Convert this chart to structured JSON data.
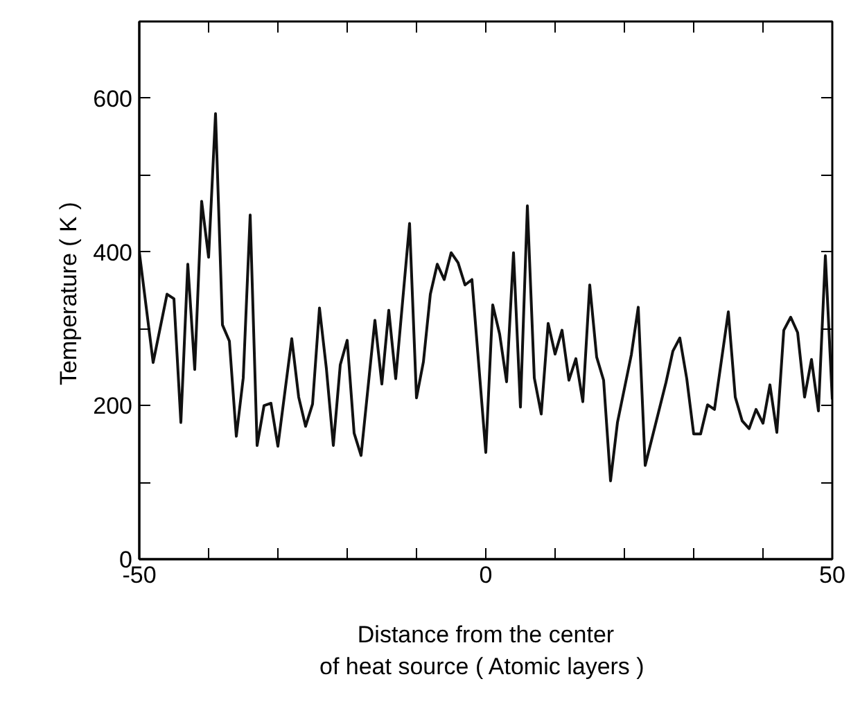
{
  "chart_data": {
    "type": "line",
    "xlabel": "Distance from the center\nof heat source  ( Atomic layers )",
    "ylabel": "Temperature  ( K )",
    "x": [
      -50,
      -48,
      -46,
      -45,
      -44,
      -43,
      -42,
      -41,
      -40,
      -39,
      -38,
      -37,
      -36,
      -35,
      -34,
      -33,
      -32,
      -31,
      -30,
      -28,
      -27,
      -26,
      -25,
      -24,
      -23,
      -22,
      -21,
      -20,
      -19,
      -18,
      -16,
      -15,
      -14,
      -13,
      -11,
      -10,
      -9,
      -8,
      -7,
      -6,
      -5,
      -4,
      -3,
      -2,
      0,
      1,
      2,
      3,
      4,
      5,
      6,
      7,
      8,
      9,
      10,
      11,
      12,
      13,
      14,
      15,
      16,
      17,
      18,
      19,
      21,
      22,
      23,
      26,
      27,
      28,
      29,
      30,
      31,
      32,
      33,
      35,
      36,
      37,
      38,
      39,
      40,
      41,
      42,
      43,
      44,
      45,
      46,
      47,
      48,
      49,
      50
    ],
    "series": [
      {
        "color": "#111111",
        "values": [
          400,
          256,
          345,
          339,
          178,
          384,
          247,
          466,
          393,
          580,
          305,
          284,
          160,
          236,
          448,
          148,
          200,
          203,
          147,
          287,
          211,
          173,
          202,
          327,
          248,
          148,
          253,
          285,
          164,
          135,
          311,
          228,
          324,
          235,
          437,
          210,
          257,
          345,
          384,
          364,
          399,
          386,
          357,
          364,
          139,
          331,
          293,
          231,
          399,
          198,
          460,
          236,
          189,
          307,
          267,
          298,
          233,
          261,
          205,
          357,
          263,
          233,
          102,
          178,
          266,
          328,
          122,
          230,
          271,
          288,
          235,
          163,
          163,
          201,
          195,
          322,
          211,
          180,
          170,
          195,
          177,
          227,
          165,
          298,
          315,
          295,
          211,
          260,
          193,
          395,
          208
        ]
      }
    ],
    "xlim": [
      -50,
      50
    ],
    "ylim": [
      0,
      700
    ],
    "xticks": [
      -50,
      {
        "value": -40,
        "label": null
      },
      {
        "value": -30,
        "label": null
      },
      {
        "value": -20,
        "label": null
      },
      {
        "value": -10,
        "label": null
      },
      0,
      {
        "value": 10,
        "label": null
      },
      {
        "value": 20,
        "label": null
      },
      {
        "value": 30,
        "label": null
      },
      {
        "value": 40,
        "label": null
      },
      50
    ],
    "yticks": [
      0,
      {
        "value": 100,
        "label": null
      },
      200,
      {
        "value": 300,
        "label": null
      },
      400,
      {
        "value": 500,
        "label": null
      },
      600
    ],
    "grid": false,
    "marker": "none",
    "line_style": "solid"
  }
}
